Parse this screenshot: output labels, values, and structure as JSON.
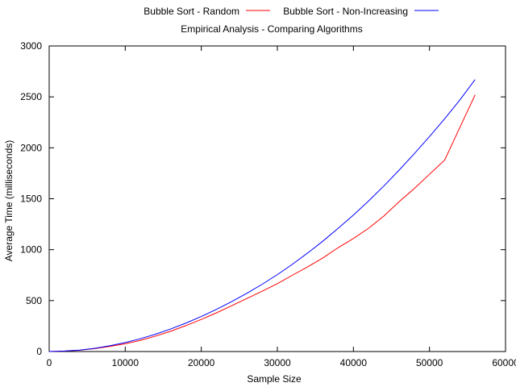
{
  "chart_data": {
    "type": "line",
    "title": "Empirical Analysis - Comparing Algorithms",
    "xlabel": "Sample Size",
    "ylabel": "Average Time (milliseconds)",
    "xlim": [
      0,
      60000
    ],
    "ylim": [
      0,
      3000
    ],
    "xticks": [
      0,
      10000,
      20000,
      30000,
      40000,
      50000,
      60000
    ],
    "yticks": [
      0,
      500,
      1000,
      1500,
      2000,
      2500,
      3000
    ],
    "grid": false,
    "legend_position": "top-center",
    "series": [
      {
        "name": "Bubble Sort - Random",
        "color": "#ff0000",
        "x": [
          0,
          2000,
          4000,
          6000,
          8000,
          10000,
          12000,
          14000,
          16000,
          18000,
          20000,
          22000,
          24000,
          26000,
          28000,
          30000,
          32000,
          34000,
          36000,
          38000,
          40000,
          42000,
          44000,
          46000,
          48000,
          50000,
          51000,
          52000,
          53000,
          54000,
          55000,
          56000
        ],
        "y": [
          0,
          4,
          13,
          29,
          50,
          76,
          110,
          152,
          200,
          255,
          315,
          380,
          450,
          521,
          592,
          666,
          750,
          832,
          920,
          1020,
          1110,
          1210,
          1330,
          1470,
          1600,
          1740,
          1810,
          1880,
          2040,
          2200,
          2360,
          2520
        ]
      },
      {
        "name": "Bubble Sort - Non-Increasing",
        "color": "#0000ff",
        "x": [
          0,
          2000,
          4000,
          6000,
          8000,
          10000,
          12000,
          14000,
          16000,
          18000,
          20000,
          22000,
          24000,
          26000,
          28000,
          30000,
          32000,
          34000,
          36000,
          38000,
          40000,
          42000,
          44000,
          46000,
          48000,
          50000,
          52000,
          54000,
          56000
        ],
        "y": [
          0,
          5,
          14,
          32,
          57,
          88,
          126,
          170,
          222,
          280,
          344,
          414,
          490,
          572,
          660,
          755,
          858,
          968,
          1085,
          1210,
          1340,
          1478,
          1625,
          1780,
          1942,
          2110,
          2285,
          2470,
          2670
        ]
      }
    ]
  }
}
